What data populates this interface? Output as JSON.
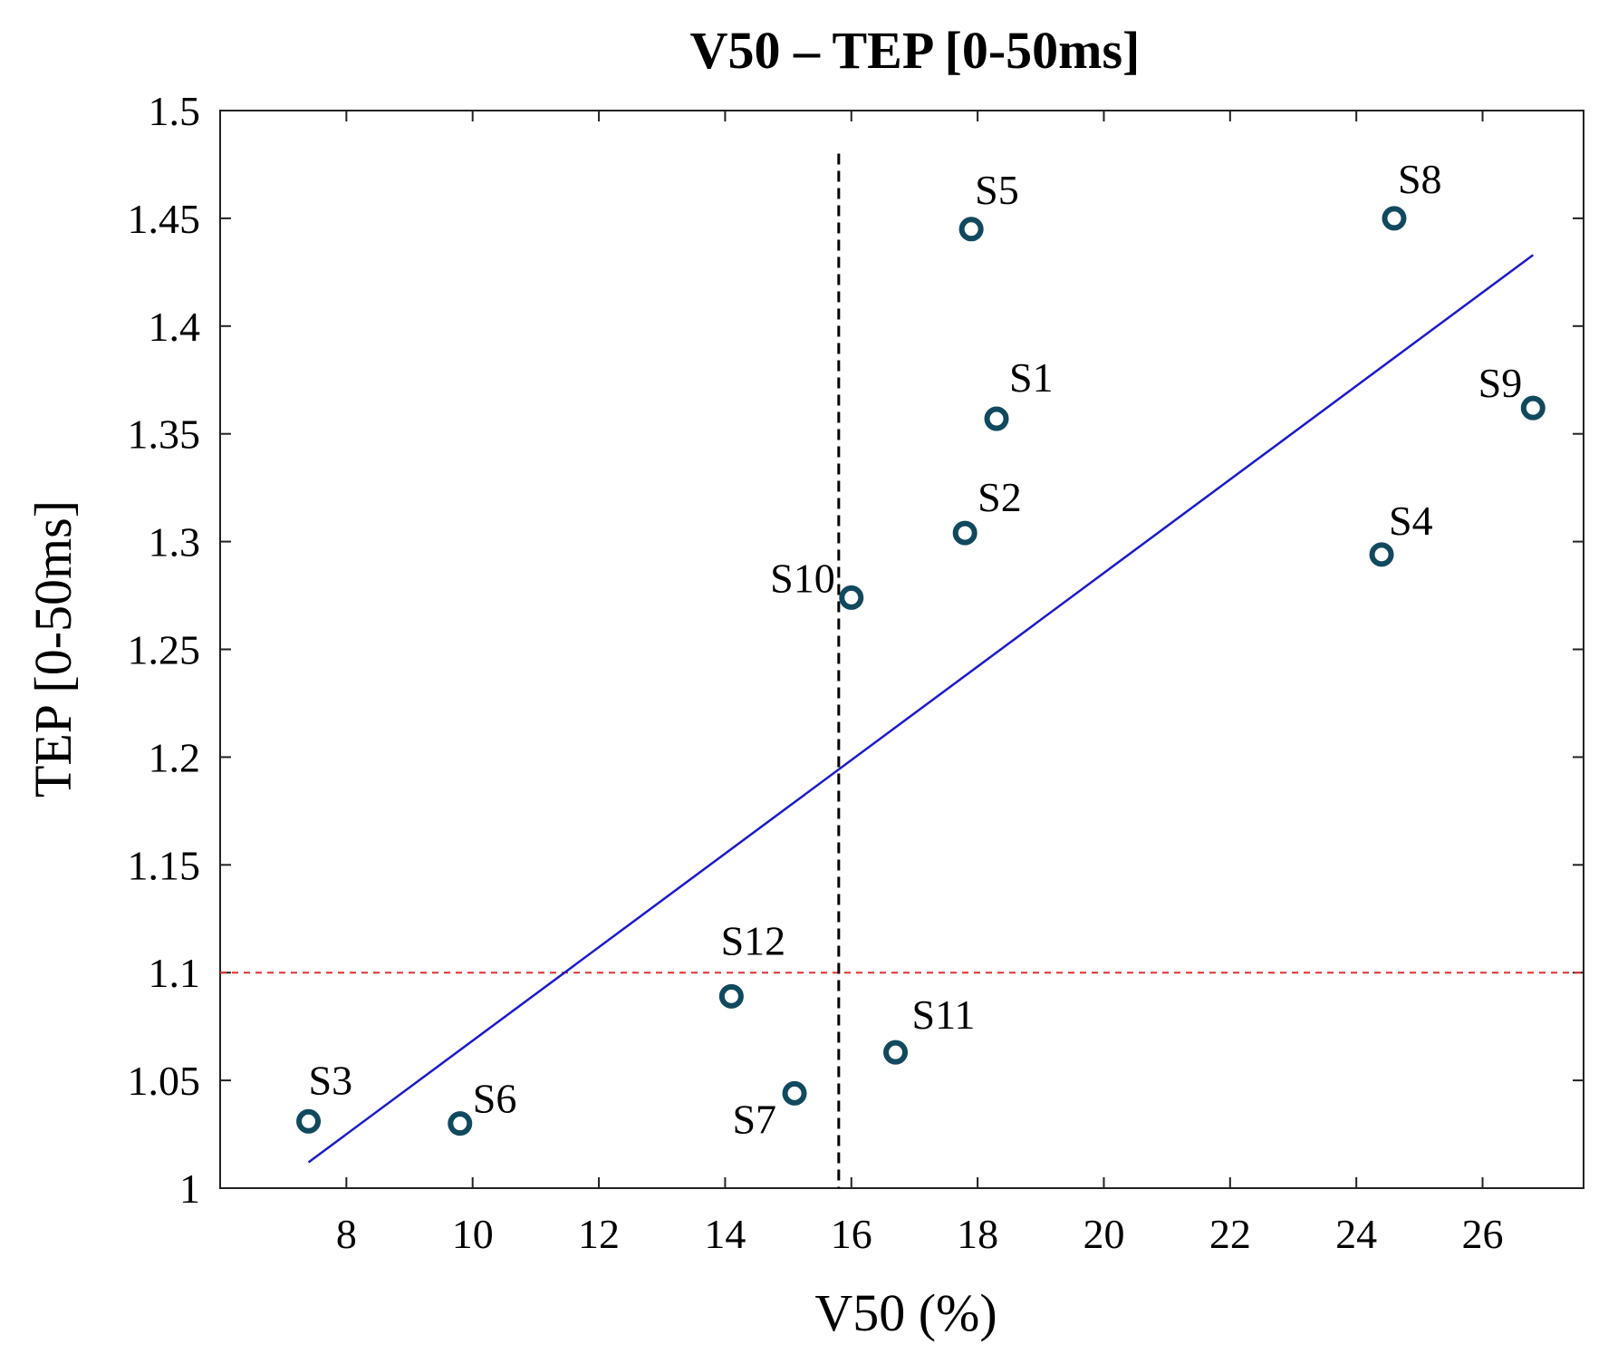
{
  "chart_data": {
    "type": "scatter",
    "title": "V50 – TEP [0-50ms]",
    "xlabel": "V50 (%)",
    "ylabel": "TEP [0-50ms]",
    "xlim": [
      6,
      27.6
    ],
    "ylim": [
      1.0,
      1.5
    ],
    "xticks": [
      8,
      10,
      12,
      14,
      16,
      18,
      20,
      22,
      24,
      26
    ],
    "yticks": [
      1,
      1.05,
      1.1,
      1.15,
      1.2,
      1.25,
      1.3,
      1.35,
      1.4,
      1.45,
      1.5
    ],
    "ytick_labels": [
      "1",
      "1.05",
      "1.1",
      "1.15",
      "1.2",
      "1.25",
      "1.3",
      "1.35",
      "1.4",
      "1.45",
      "1.5"
    ],
    "marker_color": "#11495e",
    "points": [
      {
        "label": "S1",
        "x": 18.3,
        "y": 1.357
      },
      {
        "label": "S2",
        "x": 17.8,
        "y": 1.304
      },
      {
        "label": "S3",
        "x": 7.4,
        "y": 1.031
      },
      {
        "label": "S4",
        "x": 24.4,
        "y": 1.294
      },
      {
        "label": "S5",
        "x": 17.9,
        "y": 1.445
      },
      {
        "label": "S6",
        "x": 9.8,
        "y": 1.03
      },
      {
        "label": "S7",
        "x": 15.1,
        "y": 1.044
      },
      {
        "label": "S8",
        "x": 24.6,
        "y": 1.45
      },
      {
        "label": "S9",
        "x": 26.8,
        "y": 1.362
      },
      {
        "label": "S10",
        "x": 16.0,
        "y": 1.274
      },
      {
        "label": "S11",
        "x": 16.7,
        "y": 1.063
      },
      {
        "label": "S12",
        "x": 14.1,
        "y": 1.089
      }
    ],
    "fit_line": {
      "color": "#1a1acc",
      "x": [
        7.4,
        26.8
      ],
      "y": [
        1.012,
        1.433
      ]
    },
    "hline": {
      "y": 1.1,
      "color": "#e03030",
      "style": "dashed"
    },
    "vline": {
      "x": 15.8,
      "color": "#000000",
      "style": "dashed",
      "y_range": [
        1.0,
        1.48
      ]
    }
  }
}
